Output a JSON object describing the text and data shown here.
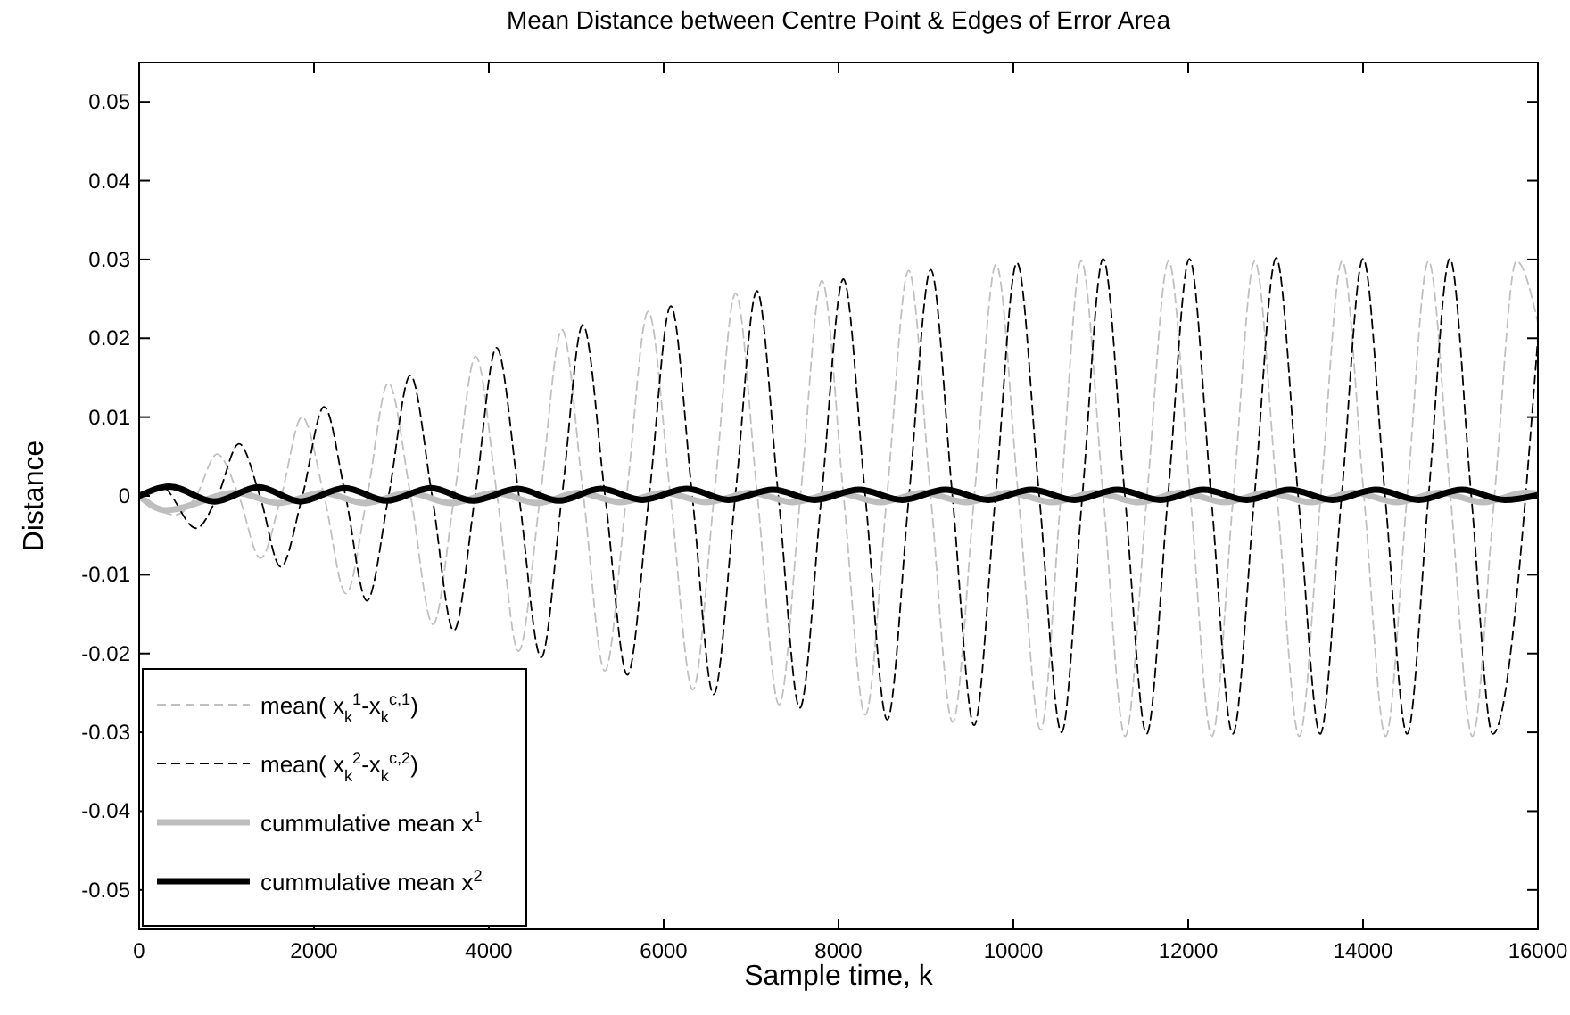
{
  "chart_data": {
    "type": "line",
    "title": "Mean Distance between Centre Point & Edges of Error Area",
    "xlabel": "Sample time, k",
    "ylabel": "Distance",
    "xlim": [
      0,
      16000
    ],
    "xticks": [
      0,
      2000,
      4000,
      6000,
      8000,
      10000,
      12000,
      14000,
      16000
    ],
    "ylim": [
      -0.055,
      0.055
    ],
    "yticks": [
      -0.05,
      -0.04,
      -0.03,
      -0.02,
      -0.01,
      0,
      0.01,
      0.02,
      0.03,
      0.04,
      0.05
    ],
    "grid": false,
    "legend": "bottom left",
    "series": [
      {
        "name": "mean( x$_{k}$$^{1}$-x$_{k}$$^{c,1}$)",
        "color": "#c0c0c0",
        "line_style": "dashed",
        "x": [
          0,
          415,
          653,
          891,
          1140,
          1388,
          1626,
          1864,
          2116,
          2367,
          2609,
          2850,
          3106,
          3361,
          3606,
          3850,
          4095,
          4340,
          4589,
          4837,
          5082,
          5327,
          5575,
          5823,
          6078,
          6333,
          6578,
          6823,
          7072,
          7320,
          7565,
          7810,
          8058,
          8306,
          8554,
          8802,
          9054,
          9306,
          9554,
          9802,
          10057,
          10312,
          10544,
          10776,
          11028,
          11279,
          11528,
          11776,
          12024,
          12271,
          12516,
          12761,
          13016,
          13271,
          13516,
          13761,
          14010,
          14259,
          14504,
          14749,
          15000,
          15251,
          15503,
          15755,
          16000
        ],
        "values": [
          0,
          -0.0024,
          0,
          0.0053,
          0,
          -0.0079,
          0,
          0.01,
          0,
          -0.0124,
          0,
          0.0143,
          0,
          -0.0163,
          0,
          0.0177,
          0,
          -0.0197,
          0,
          0.0211,
          0,
          -0.0222,
          0,
          0.0234,
          0,
          -0.0246,
          0,
          0.0257,
          0,
          -0.0265,
          0,
          0.0273,
          0,
          -0.0278,
          0,
          0.0286,
          0,
          -0.0287,
          0,
          0.0294,
          0,
          -0.0297,
          0,
          0.0298,
          0,
          -0.0305,
          0,
          0.0298,
          0,
          -0.0305,
          0,
          0.0298,
          0,
          -0.0305,
          0,
          0.0298,
          0,
          -0.0305,
          0,
          0.0298,
          0,
          -0.0305,
          0,
          0.0298,
          0.022
        ]
      },
      {
        "name": "mean( x$_{k}$$^{2}$-x$_{k}$$^{c,2}$)",
        "color": "#000000",
        "line_style": "dashed",
        "x": [
          0,
          250,
          653,
          898,
          1143,
          1381,
          1619,
          1868,
          2116,
          2361,
          2605,
          2854,
          3102,
          3351,
          3599,
          3844,
          4088,
          4344,
          4599,
          4837,
          5075,
          5330,
          5585,
          5834,
          6082,
          6327,
          6571,
          6819,
          7067,
          7312,
          7557,
          7806,
          8055,
          8306,
          8557,
          8806,
          9055,
          9303,
          9551,
          9796,
          10041,
          10296,
          10551,
          10789,
          11027,
          11276,
          11524,
          11769,
          12014,
          12262,
          12510,
          12758,
          13006,
          13258,
          13510,
          13755,
          14000,
          14252,
          14504,
          14749,
          14993,
          15238,
          15483,
          16000
        ],
        "values": [
          0,
          0.0012,
          -0.0041,
          0,
          0.0066,
          0,
          -0.009,
          0,
          0.0113,
          0,
          -0.0133,
          0,
          0.0153,
          0,
          -0.0171,
          0,
          0.0188,
          0,
          -0.0205,
          0,
          0.0217,
          0,
          -0.0227,
          0,
          0.0241,
          0,
          -0.0252,
          0,
          0.026,
          0,
          -0.0269,
          0,
          0.0275,
          0,
          -0.0284,
          0,
          0.0287,
          0,
          -0.0291,
          0,
          0.0296,
          0,
          -0.03,
          0,
          0.0301,
          0,
          -0.0302,
          0,
          0.0301,
          0,
          -0.0302,
          0,
          0.0302,
          0,
          -0.0302,
          0,
          0.0301,
          0,
          -0.0302,
          0,
          0.0301,
          0,
          -0.0302,
          0.02
        ]
      },
      {
        "name": "cummulative mean  x$^{1}$",
        "color": "#bebebe",
        "line_style": "solid",
        "x": [
          0,
          300,
          1117,
          1593,
          2103,
          2580,
          3090,
          3566,
          4077,
          4553,
          5029,
          5505,
          6015,
          6491,
          7001,
          7478,
          7986,
          8478,
          8971,
          9463,
          9956,
          10448,
          10941,
          11433,
          11926,
          12418,
          12911,
          13403,
          13896,
          14388,
          14881,
          15373,
          15866,
          16000
        ],
        "values": [
          0,
          -0.0018,
          0.0004,
          -0.0009,
          0.0004,
          -0.0009,
          0.0004,
          -0.0009,
          0.0004,
          -0.0009,
          0.0004,
          -0.0008,
          0.0004,
          -0.0008,
          0.0004,
          -0.0008,
          0.0004,
          -0.0008,
          0.0004,
          -0.0008,
          0.0004,
          -0.0008,
          0.0004,
          -0.0008,
          0.0004,
          -0.0008,
          0.0004,
          -0.0008,
          0.0004,
          -0.0008,
          0.0004,
          -0.0008,
          0.0004,
          0.0003
        ]
      },
      {
        "name": "cummulative mean  x$^{2}$",
        "color": "#000000",
        "line_style": "solid",
        "x": [
          0,
          347,
          857,
          1367,
          1843,
          2353,
          2830,
          3340,
          3816,
          4327,
          4803,
          5279,
          5755,
          6265,
          6741,
          7251,
          7728,
          8236,
          8728,
          9221,
          9713,
          10206,
          10698,
          11191,
          11683,
          12176,
          12668,
          13161,
          13653,
          14146,
          14638,
          15131,
          15623,
          16000
        ],
        "values": [
          0,
          0.0012,
          -0.0007,
          0.0011,
          -0.0007,
          0.001,
          -0.0006,
          0.001,
          -0.0006,
          0.0009,
          -0.0006,
          0.0009,
          -0.0005,
          0.0009,
          -0.0005,
          0.0008,
          -0.0005,
          0.0008,
          -0.0005,
          0.0008,
          -0.0005,
          0.0008,
          -0.0005,
          0.0008,
          -0.0005,
          0.0008,
          -0.0005,
          0.0008,
          -0.0005,
          0.0008,
          -0.0005,
          0.0008,
          -0.0005,
          0.0001
        ]
      }
    ]
  }
}
